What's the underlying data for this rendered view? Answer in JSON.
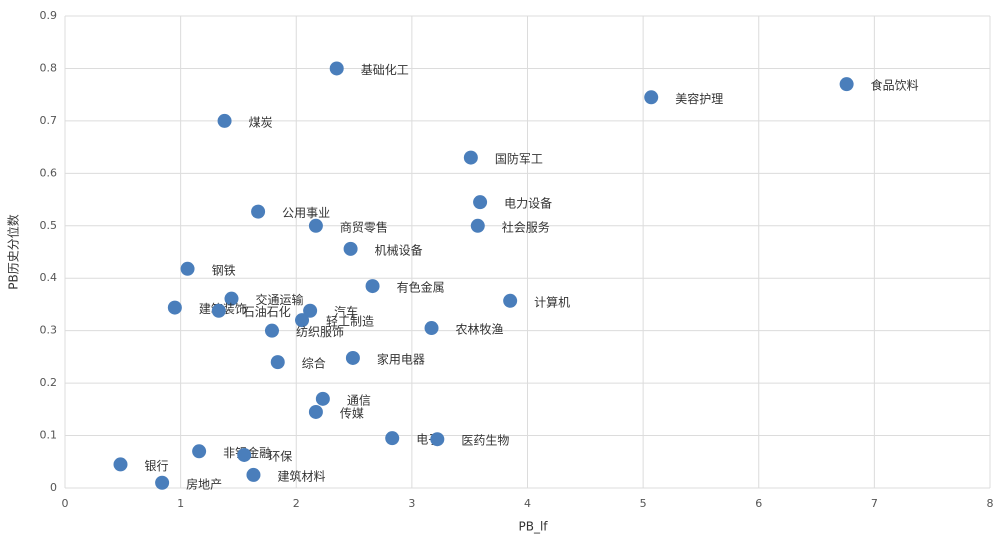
{
  "chart_data": {
    "type": "scatter",
    "x_label": "PB_lf",
    "y_label": "PB历史分位数",
    "labels": [
      "基础化工",
      "煤炭",
      "美容护理",
      "食品饮料",
      "国防军工",
      "电力设备",
      "社会服务",
      "公用事业",
      "商贸零售",
      "机械设备",
      "钢铁",
      "有色金属",
      "计算机",
      "交通运输",
      "建筑装饰",
      "石油石化",
      "汽车",
      "轻工制造",
      "纺织服饰",
      "农林牧渔",
      "综合",
      "家用电器",
      "通信",
      "传媒",
      "电子",
      "医药生物",
      "非银金融",
      "环保",
      "银行",
      "建筑材料",
      "房地产"
    ],
    "x": [
      2.35,
      1.38,
      5.07,
      6.76,
      3.51,
      3.59,
      3.57,
      1.67,
      2.17,
      2.47,
      1.06,
      2.66,
      3.85,
      1.44,
      0.95,
      1.33,
      2.12,
      2.05,
      1.79,
      3.17,
      1.84,
      2.49,
      2.23,
      2.17,
      2.83,
      3.22,
      1.16,
      1.55,
      0.48,
      1.63,
      0.84
    ],
    "values": [
      0.8,
      0.7,
      0.745,
      0.77,
      0.63,
      0.545,
      0.5,
      0.527,
      0.5,
      0.456,
      0.418,
      0.385,
      0.357,
      0.361,
      0.344,
      0.338,
      0.338,
      0.32,
      0.3,
      0.305,
      0.24,
      0.248,
      0.17,
      0.145,
      0.095,
      0.093,
      0.07,
      0.063,
      0.045,
      0.025,
      0.01
    ],
    "color": "#4a7ebb",
    "xlim": [
      0,
      8
    ],
    "xticks": [
      0,
      1,
      2,
      3,
      4,
      5,
      6,
      7,
      8
    ],
    "ylim": [
      0,
      0.9
    ],
    "yticks": [
      0,
      0.1,
      0.2,
      0.3,
      0.4,
      0.5,
      0.6,
      0.7,
      0.8,
      0.9
    ],
    "grid": true
  }
}
